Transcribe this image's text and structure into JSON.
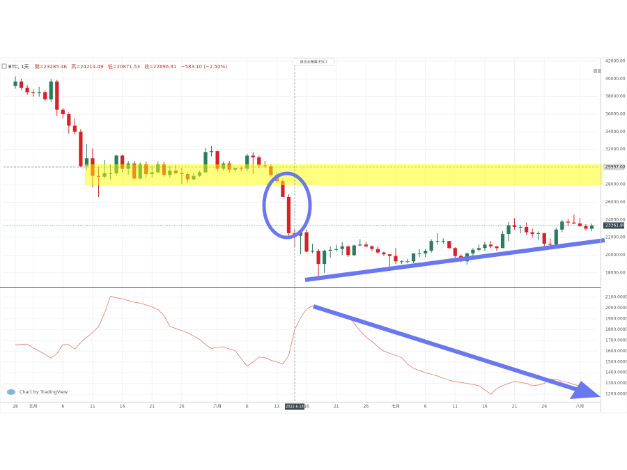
{
  "chart_data": {
    "type": "candlestick",
    "title": "BTC, 1天",
    "ohlc_legend": [
      "開=23285.46",
      "高=24214.49",
      "低=20871.53",
      "收=22696.91",
      "−583.10 (−2.50%)"
    ],
    "fullscreen_hint": "退出全螢幕(ESC)",
    "watermark": "Chart by TradingView",
    "x": [
      "2022-04-28",
      "2022-04-29",
      "2022-04-30",
      "2022-05-01",
      "2022-05-02",
      "2022-05-03",
      "2022-05-04",
      "2022-05-05",
      "2022-05-06",
      "2022-05-07",
      "2022-05-08",
      "2022-05-09",
      "2022-05-10",
      "2022-05-11",
      "2022-05-12",
      "2022-05-13",
      "2022-05-14",
      "2022-05-15",
      "2022-05-16",
      "2022-05-17",
      "2022-05-18",
      "2022-05-19",
      "2022-05-20",
      "2022-05-21",
      "2022-05-22",
      "2022-05-23",
      "2022-05-24",
      "2022-05-25",
      "2022-05-26",
      "2022-05-27",
      "2022-05-28",
      "2022-05-29",
      "2022-05-30",
      "2022-05-31",
      "2022-06-01",
      "2022-06-02",
      "2022-06-03",
      "2022-06-04",
      "2022-06-05",
      "2022-06-06",
      "2022-06-07",
      "2022-06-08",
      "2022-06-09",
      "2022-06-10",
      "2022-06-11",
      "2022-06-12",
      "2022-06-13",
      "2022-06-14",
      "2022-06-15",
      "2022-06-16",
      "2022-06-17",
      "2022-06-18",
      "2022-06-19",
      "2022-06-20",
      "2022-06-21",
      "2022-06-22",
      "2022-06-23",
      "2022-06-24",
      "2022-06-25",
      "2022-06-26",
      "2022-06-27",
      "2022-06-28",
      "2022-06-29",
      "2022-06-30",
      "2022-07-01",
      "2022-07-02",
      "2022-07-03",
      "2022-07-04",
      "2022-07-05",
      "2022-07-06",
      "2022-07-07",
      "2022-07-08",
      "2022-07-09",
      "2022-07-10",
      "2022-07-11",
      "2022-07-12",
      "2022-07-13",
      "2022-07-14",
      "2022-07-15",
      "2022-07-16",
      "2022-07-17",
      "2022-07-18",
      "2022-07-19",
      "2022-07-20",
      "2022-07-21",
      "2022-07-22",
      "2022-07-23",
      "2022-07-24",
      "2022-07-25",
      "2022-07-26",
      "2022-07-27",
      "2022-07-28",
      "2022-07-29",
      "2022-07-30",
      "2022-07-31",
      "2022-08-01",
      "2022-08-02",
      "2022-08-03"
    ],
    "open": [
      39200,
      39700,
      39000,
      38500,
      38400,
      38500,
      37700,
      39700,
      36500,
      36000,
      34700,
      34000,
      30100,
      31000,
      29000,
      28900,
      29300,
      29300,
      31300,
      29800,
      30400,
      28700,
      30300,
      29200,
      29400,
      30300,
      29100,
      29600,
      29300,
      29200,
      28600,
      29000,
      29400,
      31700,
      31800,
      29800,
      30400,
      29700,
      29900,
      29800,
      31300,
      31100,
      30200,
      30100,
      29100,
      28400,
      26600,
      22500,
      22200,
      22600,
      20400,
      20500,
      19000,
      20500,
      20600,
      20700,
      21000,
      20000,
      21100,
      21200,
      21000,
      20700,
      20300,
      20100,
      19900,
      19300,
      19300,
      19300,
      20200,
      20200,
      20500,
      21600,
      21600,
      21600,
      20800,
      19900,
      19300,
      20200,
      20600,
      20800,
      21200,
      21000,
      20800,
      22400,
      23400,
      23200,
      23200,
      22600,
      22400,
      22500,
      21300,
      21200,
      22900,
      23800,
      23700,
      23600,
      23300,
      23000
    ],
    "high": [
      40300,
      40000,
      39300,
      38800,
      39100,
      38700,
      40000,
      39900,
      36700,
      36200,
      35500,
      34300,
      32600,
      32100,
      30000,
      30800,
      30300,
      31400,
      31400,
      30700,
      30700,
      30500,
      30600,
      30200,
      30600,
      30600,
      30100,
      30200,
      29900,
      29400,
      29300,
      29600,
      32200,
      32400,
      31900,
      30600,
      30700,
      29900,
      30100,
      31500,
      31700,
      31300,
      30700,
      30300,
      29400,
      28600,
      26900,
      23000,
      22800,
      22900,
      21300,
      20700,
      20600,
      21000,
      21200,
      21500,
      21100,
      21200,
      21800,
      21500,
      21100,
      21000,
      20400,
      20100,
      20800,
      19400,
      19600,
      20200,
      20700,
      20700,
      21800,
      22500,
      21900,
      21600,
      20900,
      20100,
      20300,
      20800,
      21200,
      21500,
      21600,
      21000,
      22700,
      23800,
      24200,
      23400,
      23700,
      23000,
      22700,
      22500,
      21900,
      23100,
      24000,
      24100,
      24600,
      24200,
      23500,
      23600
    ],
    "low": [
      38900,
      38700,
      38200,
      38000,
      38000,
      37500,
      37400,
      35800,
      35500,
      33800,
      33700,
      30000,
      29700,
      27700,
      26600,
      28700,
      28600,
      29000,
      29400,
      29100,
      28600,
      28600,
      28800,
      28800,
      29300,
      28900,
      28800,
      29200,
      28100,
      28200,
      28500,
      28900,
      29300,
      31200,
      29500,
      29600,
      29400,
      29500,
      29500,
      29500,
      29200,
      29900,
      29900,
      28900,
      28200,
      26600,
      22000,
      20900,
      20100,
      20300,
      20200,
      17600,
      18000,
      19700,
      20400,
      20000,
      19800,
      19900,
      21000,
      20900,
      20500,
      20200,
      19900,
      18700,
      19000,
      19000,
      19100,
      19100,
      19800,
      19800,
      20300,
      21200,
      21300,
      20700,
      19700,
      19200,
      18900,
      19700,
      20400,
      20500,
      20800,
      20500,
      20800,
      21600,
      22900,
      22500,
      22300,
      22000,
      21700,
      21000,
      20700,
      21000,
      22600,
      23300,
      23500,
      23200,
      22800,
      22700
    ],
    "close": [
      39700,
      39000,
      38500,
      38400,
      38500,
      37700,
      39700,
      36500,
      36000,
      34700,
      34000,
      30100,
      31000,
      29000,
      28900,
      29300,
      29300,
      31300,
      29800,
      30400,
      28700,
      30300,
      29200,
      29400,
      30300,
      29100,
      29600,
      29300,
      29200,
      28600,
      29000,
      29400,
      31700,
      31800,
      29800,
      30400,
      29700,
      29900,
      29800,
      31300,
      31100,
      30200,
      30100,
      29100,
      28400,
      26600,
      22500,
      22200,
      22600,
      20400,
      20500,
      19000,
      20500,
      20600,
      20700,
      21000,
      20000,
      21100,
      21200,
      21000,
      20700,
      20300,
      20100,
      19900,
      19300,
      19300,
      19300,
      20200,
      20200,
      20500,
      21600,
      21600,
      21600,
      20800,
      19900,
      19300,
      20200,
      20600,
      20800,
      21200,
      21000,
      20800,
      22400,
      23400,
      23200,
      23200,
      22600,
      22400,
      22500,
      21300,
      21200,
      22900,
      23800,
      23700,
      23600,
      23300,
      23000,
      23362
    ],
    "up_color": "#2b7a62",
    "down_color": "#d2232a",
    "xlim": [
      "2022-04-26",
      "2022-08-04"
    ],
    "xticks": [
      {
        "value": "2022-04-28",
        "label": "28"
      },
      {
        "value": "2022-05-01",
        "label": "五月"
      },
      {
        "value": "2022-05-06",
        "label": "6"
      },
      {
        "value": "2022-05-11",
        "label": "11"
      },
      {
        "value": "2022-05-16",
        "label": "16"
      },
      {
        "value": "2022-05-21",
        "label": "21"
      },
      {
        "value": "2022-05-26",
        "label": "26"
      },
      {
        "value": "2022-06-01",
        "label": "六月"
      },
      {
        "value": "2022-06-06",
        "label": "6"
      },
      {
        "value": "2022-06-11",
        "label": "11"
      },
      {
        "value": "2022-06-16",
        "label": "16"
      },
      {
        "value": "2022-06-21",
        "label": "21"
      },
      {
        "value": "2022-06-26",
        "label": "26"
      },
      {
        "value": "2022-07-01",
        "label": "七月"
      },
      {
        "value": "2022-07-06",
        "label": "6"
      },
      {
        "value": "2022-07-11",
        "label": "11"
      },
      {
        "value": "2022-07-16",
        "label": "16"
      },
      {
        "value": "2022-07-21",
        "label": "21"
      },
      {
        "value": "2022-07-26",
        "label": "26"
      },
      {
        "value": "2022-08-01",
        "label": "八月"
      }
    ],
    "crosshair": {
      "value": "2022-06-14",
      "label": "2022-6-14"
    },
    "ylim": [
      16400,
      42400
    ],
    "yticks": [
      {
        "value": 18000,
        "label": "18000.00"
      },
      {
        "value": 20000,
        "label": "20000.00"
      },
      {
        "value": 22000,
        "label": "22000.00"
      },
      {
        "value": 24000,
        "label": "24000.00"
      },
      {
        "value": 26000,
        "label": "26000.00"
      },
      {
        "value": 28000,
        "label": "28000.00"
      },
      {
        "value": 30000,
        "label": "30000.00"
      },
      {
        "value": 32000,
        "label": "32000.00"
      },
      {
        "value": 34000,
        "label": "34000.00"
      },
      {
        "value": 36000,
        "label": "36000.00"
      },
      {
        "value": 38000,
        "label": "38000.00"
      },
      {
        "value": 40000,
        "label": "40000.00"
      },
      {
        "value": 42000,
        "label": "42000.00"
      }
    ],
    "price_markers": [
      {
        "value": 29997.02,
        "color": "#d9d9d9",
        "text_color": "#333333"
      },
      {
        "value": 23361.8,
        "label": "23361.80",
        "color": "#33494f",
        "text_color": "#ffffff"
      }
    ],
    "grid": true,
    "indicator": {
      "color": "#e8857f",
      "values": [
        1660,
        1662,
        1665,
        1630,
        1600,
        1570,
        1535,
        1580,
        1660,
        1660,
        1620,
        1680,
        1730,
        1770,
        1830,
        1950,
        2110,
        2095,
        2085,
        2070,
        2055,
        2045,
        2030,
        2010,
        1985,
        1930,
        1830,
        1810,
        1790,
        1770,
        1740,
        1710,
        1660,
        1625,
        1635,
        1640,
        1620,
        1605,
        1530,
        1460,
        1500,
        1545,
        1540,
        1515,
        1500,
        1480,
        1560,
        1800,
        1910,
        1990,
        2020,
        2000,
        1985,
        1970,
        1950,
        1935,
        1920,
        1860,
        1790,
        1730,
        1690,
        1640,
        1600,
        1580,
        1560,
        1540,
        1480,
        1440,
        1420,
        1400,
        1385,
        1370,
        1350,
        1330,
        1315,
        1310,
        1300,
        1290,
        1280,
        1240,
        1200,
        1250,
        1280,
        1300,
        1320,
        1310,
        1300,
        1280,
        1285,
        1300,
        1340,
        1340,
        1320,
        1310,
        1290,
        1275,
        1260,
        1220
      ],
      "ylim": [
        1130,
        2190
      ],
      "yticks": [
        {
          "value": 1200,
          "label": "1200.0000"
        },
        {
          "value": 1300,
          "label": "1300.0000"
        },
        {
          "value": 1400,
          "label": "1400.0000"
        },
        {
          "value": 1500,
          "label": "1500.0000"
        },
        {
          "value": 1600,
          "label": "1600.0000"
        },
        {
          "value": 1700,
          "label": "1700.0000"
        },
        {
          "value": 1800,
          "label": "1800.0000"
        },
        {
          "value": 1900,
          "label": "1900.0000"
        },
        {
          "value": 2000,
          "label": "2000.0000"
        },
        {
          "value": 2100,
          "label": "2100.0000"
        }
      ]
    }
  }
}
